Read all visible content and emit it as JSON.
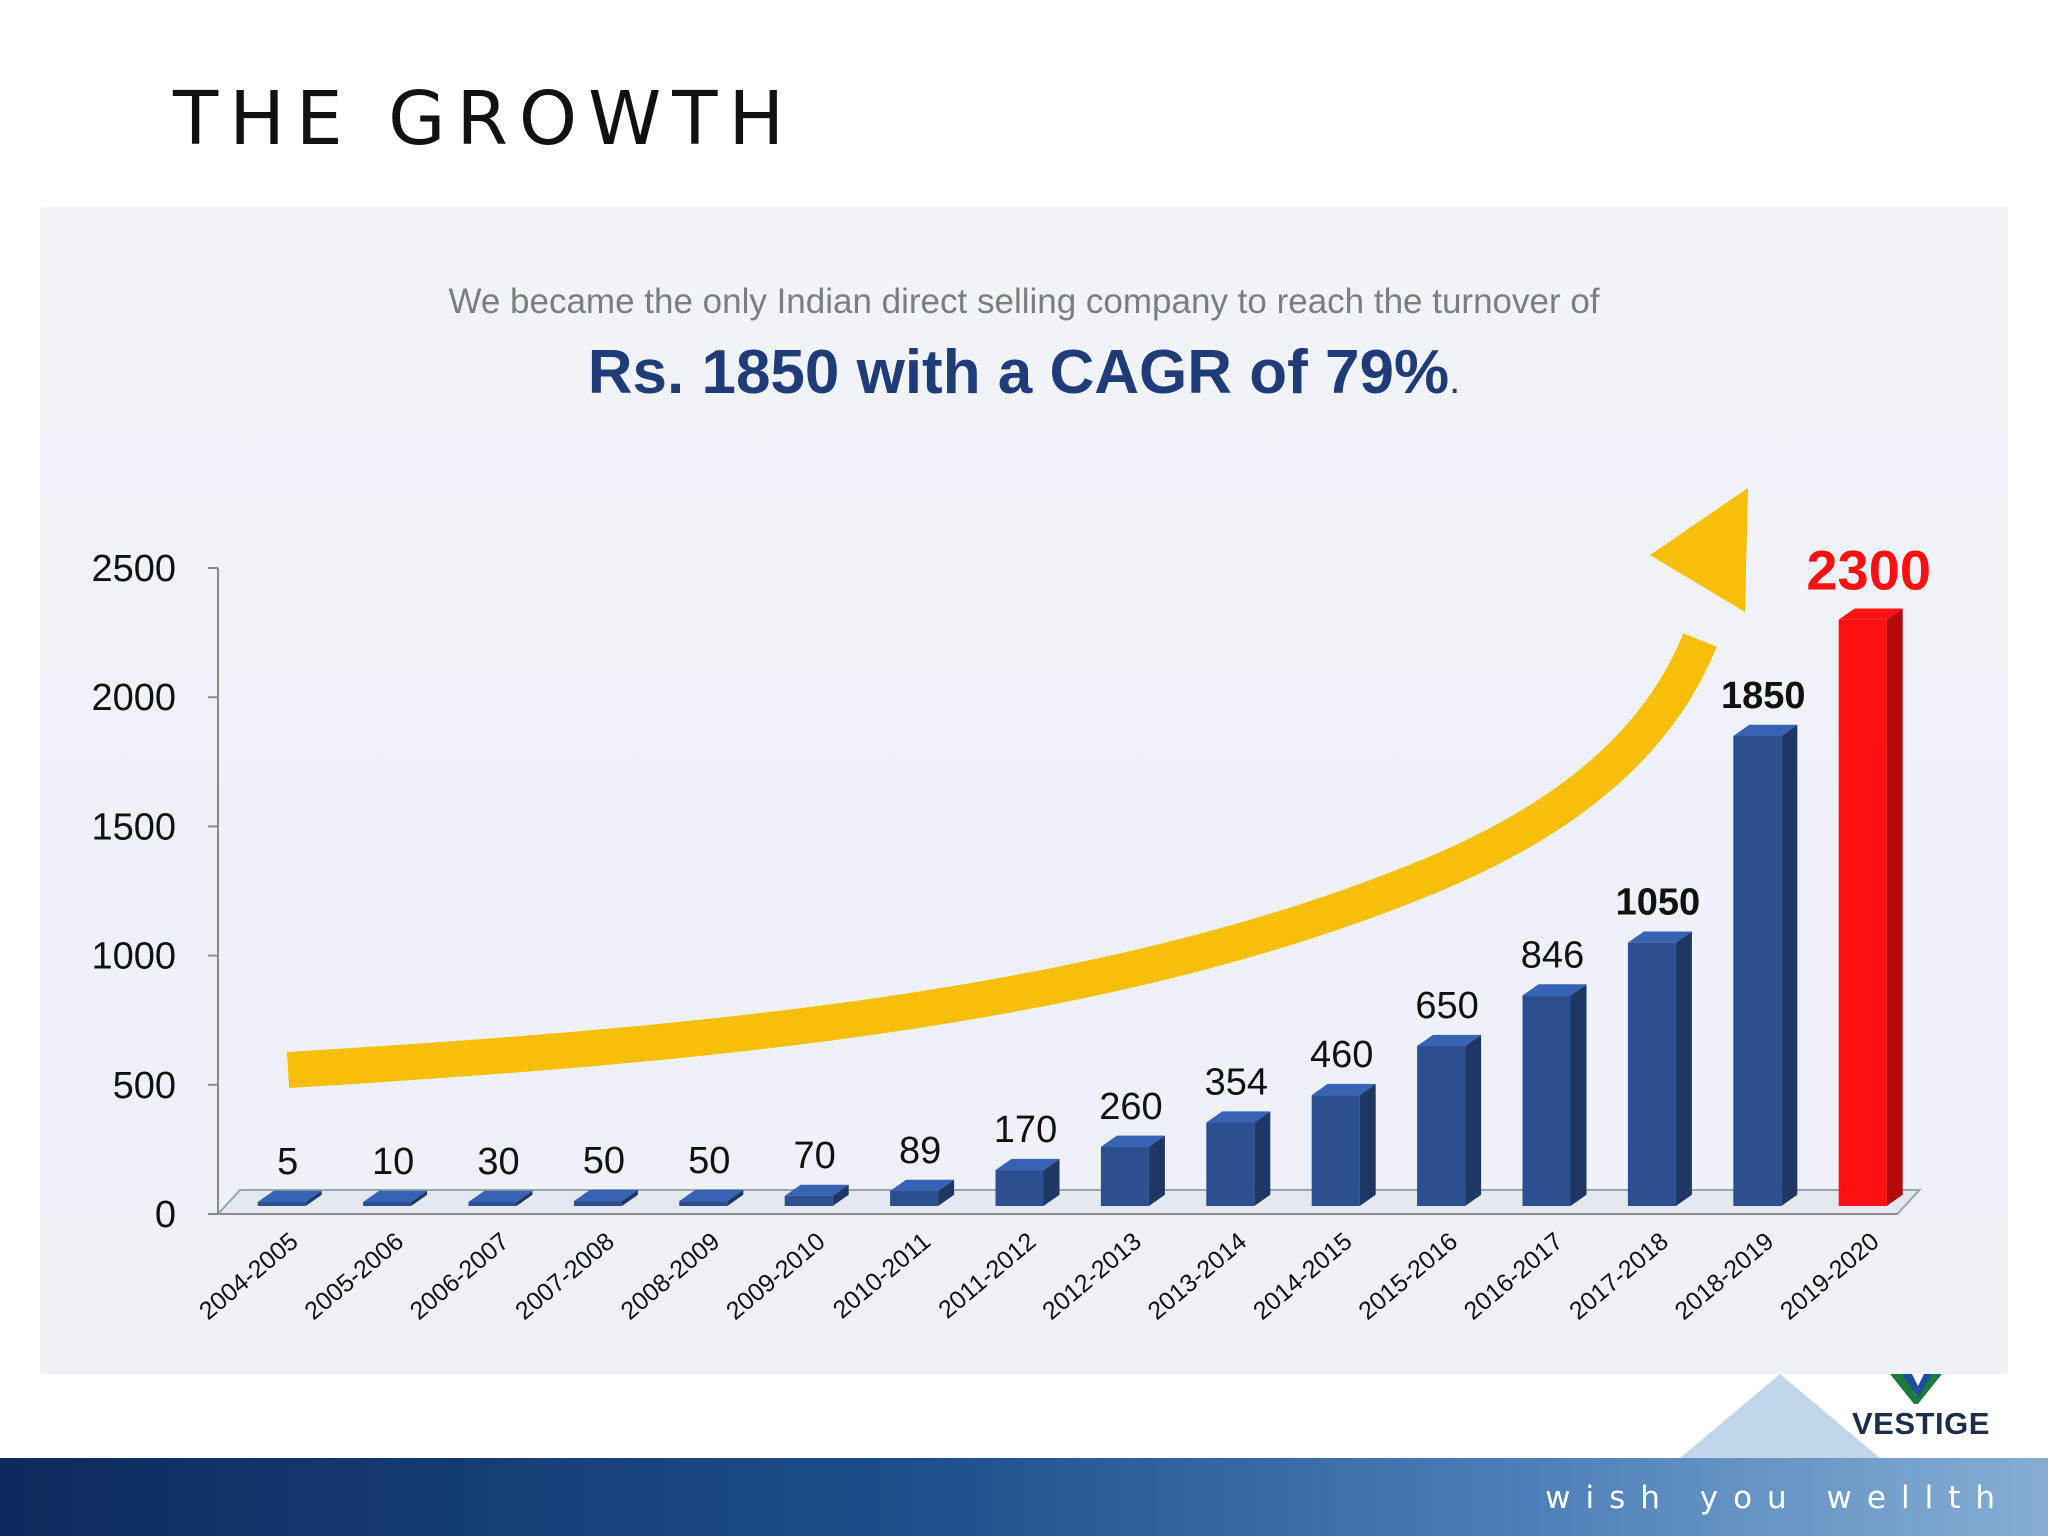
{
  "slide": {
    "title": "THE GROWTH"
  },
  "banner": {
    "subtitle": "We became the only Indian direct selling company to reach the turnover of",
    "headline": "Rs. 1850 with a CAGR of 79%",
    "headline_punct": "."
  },
  "brand": {
    "name": "VESTIGE",
    "tagline": "wish you wellth"
  },
  "colors": {
    "bar": "#2b4f8f",
    "highlight_bar": "#ff1010",
    "arrow": "#f7bf07",
    "headline": "#1f3c78"
  },
  "chart_data": {
    "type": "bar",
    "title": "",
    "xlabel": "",
    "ylabel": "",
    "ylim": [
      0,
      2500
    ],
    "yticks": [
      0,
      500,
      1000,
      1500,
      2000,
      2500
    ],
    "categories": [
      "2004-2005",
      "2005-2006",
      "2006-2007",
      "2007-2008",
      "2008-2009",
      "2009-2010",
      "2010-2011",
      "2011-2012",
      "2012-2013",
      "2013-2014",
      "2014-2015",
      "2015-2016",
      "2016-2017",
      "2017-2018",
      "2018-2019",
      "2019-2020"
    ],
    "values": [
      5,
      10,
      30,
      50,
      50,
      70,
      89,
      170,
      260,
      354,
      460,
      650,
      846,
      1050,
      1850,
      2300
    ],
    "value_labels": [
      "5",
      "10",
      "30",
      "50",
      "50",
      "70",
      "89",
      "170",
      "260",
      "354",
      "460",
      "650",
      "846",
      "1050",
      "1850",
      "2300"
    ],
    "highlight_index": 15,
    "grid": false,
    "legend": "none",
    "annotation": "upward growth arrow"
  }
}
